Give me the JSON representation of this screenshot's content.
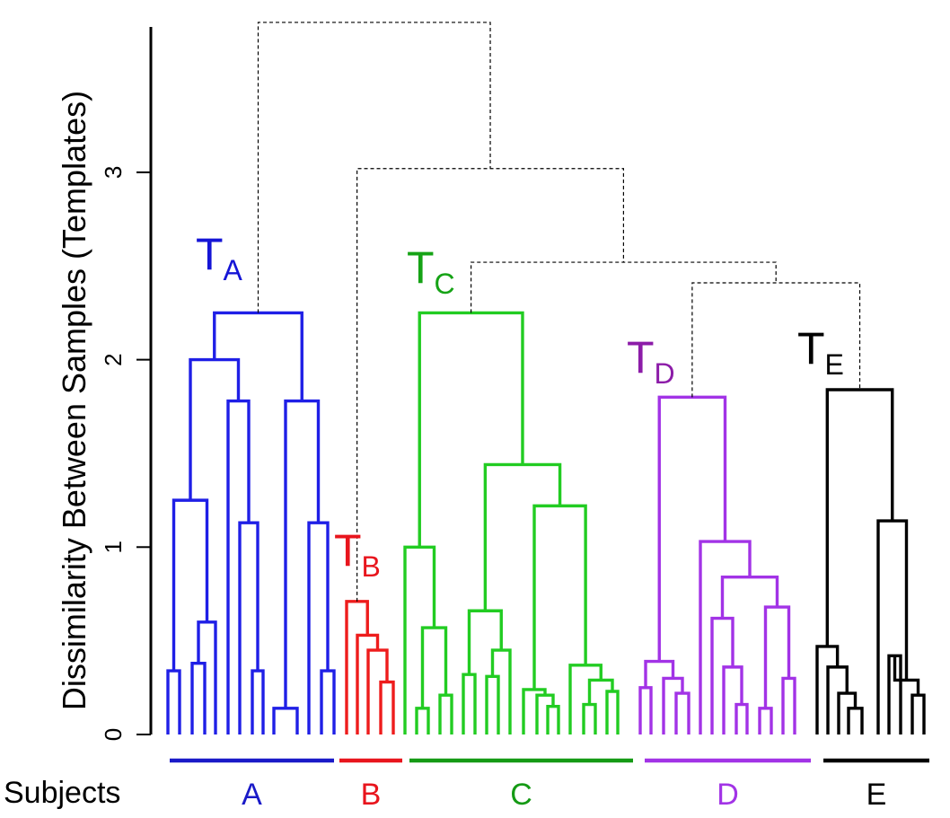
{
  "chart_data": {
    "type": "dendrogram",
    "ylabel": "Dissimilarity Between Samples (Templates)",
    "ylim": [
      0,
      3.8
    ],
    "yticks": [
      {
        "value": 0,
        "label": "0"
      },
      {
        "value": 1,
        "label": "1"
      },
      {
        "value": 2,
        "label": "2"
      },
      {
        "value": 3,
        "label": "3"
      }
    ],
    "subjects_label": "Subjects",
    "template_labels": [
      {
        "main": "T",
        "sub": "A",
        "color": "#1515d6"
      },
      {
        "main": "T",
        "sub": "B",
        "color": "#e8151d"
      },
      {
        "main": "T",
        "sub": "C",
        "color": "#16a316"
      },
      {
        "main": "T",
        "sub": "D",
        "color": "#8c1ca8"
      },
      {
        "main": "T",
        "sub": "E",
        "color": "#000000"
      }
    ],
    "clusters": [
      {
        "subject": "A",
        "color": "#1f1fe6",
        "label_color": "#1a1ac8",
        "leaves": 12,
        "height": 2.25
      },
      {
        "subject": "B",
        "color": "#ee1c1c",
        "label_color": "#e8151d",
        "leaves": 4,
        "height": 0.71
      },
      {
        "subject": "C",
        "color": "#22cc22",
        "label_color": "#159a15",
        "leaves": 18,
        "height": 2.25
      },
      {
        "subject": "D",
        "color": "#a233e6",
        "label_color": "#a233e6",
        "leaves": 13,
        "height": 1.8
      },
      {
        "subject": "E",
        "color": "#000000",
        "label_color": "#000000",
        "leaves": 8,
        "height": 1.84
      }
    ],
    "upper_merges": [
      {
        "clusters": [
          "D",
          "E"
        ],
        "height": 2.41
      },
      {
        "clusters": [
          "C",
          "D+E"
        ],
        "height": 2.52
      },
      {
        "clusters": [
          "B",
          "C+D+E"
        ],
        "height": 3.02
      },
      {
        "clusters": [
          "A",
          "B+C+D+E"
        ],
        "height": 3.8
      }
    ],
    "grid": false,
    "legend": "none"
  }
}
